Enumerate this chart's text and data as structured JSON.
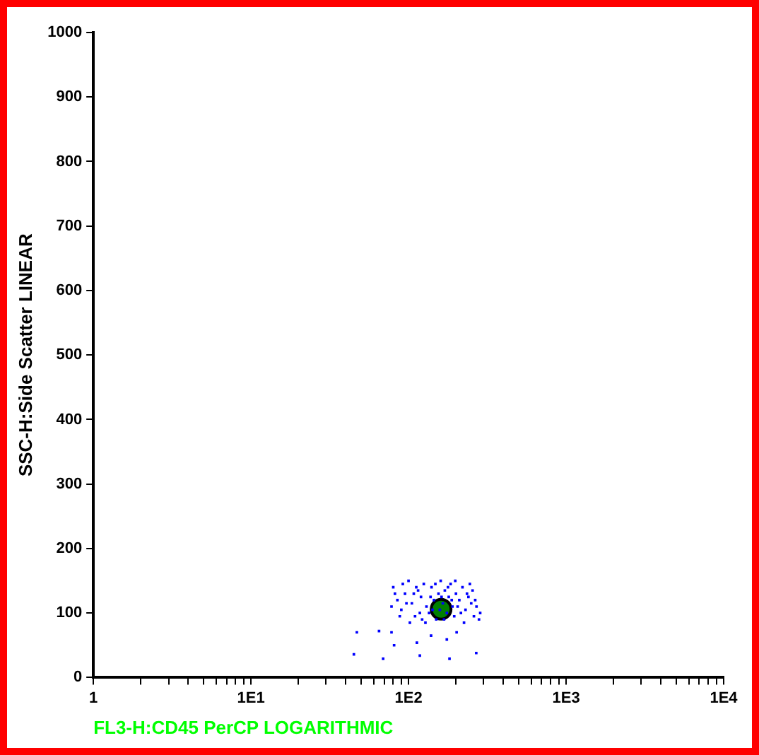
{
  "chart_data": {
    "type": "scatter",
    "xlabel": "FL3-H:CD45 PerCP LOGARITHMIC",
    "ylabel": "SSC-H:Side Scatter LINEAR",
    "log": "x",
    "grid": false,
    "legend": false,
    "xlim": [
      1,
      10000
    ],
    "ylim": [
      0,
      1000
    ],
    "xticks": [
      1,
      {
        "value": 2,
        "label": null
      },
      {
        "value": 3,
        "label": null
      },
      {
        "value": 4,
        "label": null
      },
      {
        "value": 5,
        "label": null
      },
      {
        "value": 6,
        "label": null
      },
      {
        "value": 7,
        "label": null
      },
      {
        "value": 8,
        "label": null
      },
      {
        "value": 9,
        "label": null
      },
      {
        "value": 10,
        "label": "1E1"
      },
      {
        "value": 20,
        "label": null
      },
      {
        "value": 30,
        "label": null
      },
      {
        "value": 40,
        "label": null
      },
      {
        "value": 50,
        "label": null
      },
      {
        "value": 60,
        "label": null
      },
      {
        "value": 70,
        "label": null
      },
      {
        "value": 80,
        "label": null
      },
      {
        "value": 90,
        "label": null
      },
      {
        "value": 100,
        "label": "1E2"
      },
      {
        "value": 200,
        "label": null
      },
      {
        "value": 300,
        "label": null
      },
      {
        "value": 400,
        "label": null
      },
      {
        "value": 500,
        "label": null
      },
      {
        "value": 600,
        "label": null
      },
      {
        "value": 700,
        "label": null
      },
      {
        "value": 800,
        "label": null
      },
      {
        "value": 900,
        "label": null
      },
      {
        "value": 1000,
        "label": "1E3"
      },
      {
        "value": 2000,
        "label": null
      },
      {
        "value": 3000,
        "label": null
      },
      {
        "value": 4000,
        "label": null
      },
      {
        "value": 5000,
        "label": null
      },
      {
        "value": 6000,
        "label": null
      },
      {
        "value": 7000,
        "label": null
      },
      {
        "value": 8000,
        "label": null
      },
      {
        "value": 9000,
        "label": null
      },
      {
        "value": 10000,
        "label": "1E4"
      }
    ],
    "yticks": [
      0,
      100,
      200,
      300,
      400,
      500,
      600,
      700,
      800,
      900,
      1000
    ],
    "series": [
      {
        "marker": "square",
        "color": "#0000ff",
        "x": [
          80,
          85,
          90,
          95,
          100,
          105,
          110,
          115,
          120,
          125,
          130,
          135,
          140,
          145,
          150,
          155,
          160,
          165,
          170,
          175,
          180,
          185,
          190,
          195,
          200,
          210,
          220,
          230,
          240,
          250,
          260,
          270,
          285,
          78,
          88,
          92,
          102,
          108,
          118,
          128,
          138,
          148,
          158,
          168,
          178,
          188,
          198,
          215,
          225,
          235,
          245,
          255,
          265,
          280,
          82,
          97,
          112,
          122,
          142,
          162,
          205,
          47,
          65,
          78,
          81,
          113,
          45,
          69,
          118,
          182,
          175,
          269,
          139,
          202
        ],
        "values": [
          140,
          120,
          105,
          130,
          150,
          115,
          95,
          135,
          125,
          145,
          110,
          100,
          140,
          120,
          90,
          130,
          150,
          115,
          135,
          100,
          125,
          145,
          110,
          95,
          130,
          120,
          140,
          105,
          125,
          115,
          95,
          110,
          100,
          110,
          95,
          145,
          85,
          130,
          100,
          85,
          125,
          145,
          105,
          90,
          140,
          120,
          150,
          100,
          85,
          130,
          145,
          135,
          120,
          90,
          130,
          115,
          140,
          90,
          105,
          125,
          110,
          70,
          72,
          70,
          50,
          54,
          36,
          29,
          34,
          29,
          59,
          38,
          65,
          70
        ]
      },
      {
        "type": "bubble",
        "color": "#008000",
        "x": [
          161
        ],
        "values": [
          106
        ],
        "sizes": [
          1
        ]
      }
    ]
  }
}
